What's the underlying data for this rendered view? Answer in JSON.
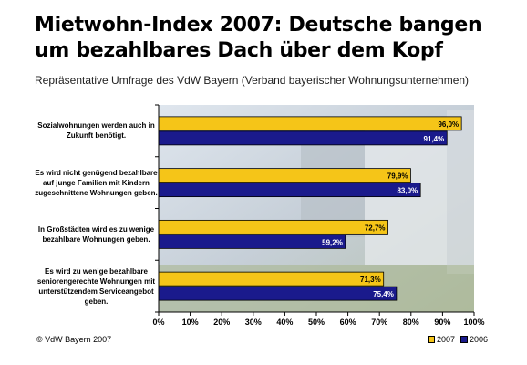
{
  "title": "Mietwohn-Index 2007: Deutsche bangen um bezahlbares Dach über dem Kopf",
  "subtitle": "Repräsentative Umfrage des VdW Bayern (Verband bayerischer Wohnungsunternehmen)",
  "footer": "© VdW Bayern 2007",
  "colors": {
    "series_2007": "#f5c518",
    "series_2006": "#1a1a8c",
    "grid": "#000000"
  },
  "chart_data": {
    "type": "bar",
    "orientation": "horizontal",
    "categories": [
      "Sozialwohnungen werden auch in Zukunft benötigt.",
      "Es wird nicht genügend bezahlbare auf junge Familien mit Kindern zugeschnittene Wohnungen geben.",
      "In Großstädten wird es zu wenige bezahlbare Wohnungen geben.",
      "Es wird zu wenige bezahlbare seniorengerechte Wohnungen mit unterstützendem Serviceangebot geben."
    ],
    "series": [
      {
        "name": "2007",
        "values": [
          96.0,
          79.9,
          72.7,
          71.3
        ],
        "labels": [
          "96,0%",
          "79,9%",
          "72,7%",
          "71,3%"
        ]
      },
      {
        "name": "2006",
        "values": [
          91.4,
          83.0,
          59.2,
          75.4
        ],
        "labels": [
          "91,4%",
          "83,0%",
          "59,2%",
          "75,4%"
        ]
      }
    ],
    "x_ticks": [
      "0%",
      "10%",
      "20%",
      "30%",
      "40%",
      "50%",
      "60%",
      "70%",
      "80%",
      "90%",
      "100%"
    ],
    "xlim": [
      0,
      100
    ],
    "legend": "bottom-right",
    "grid": false
  }
}
